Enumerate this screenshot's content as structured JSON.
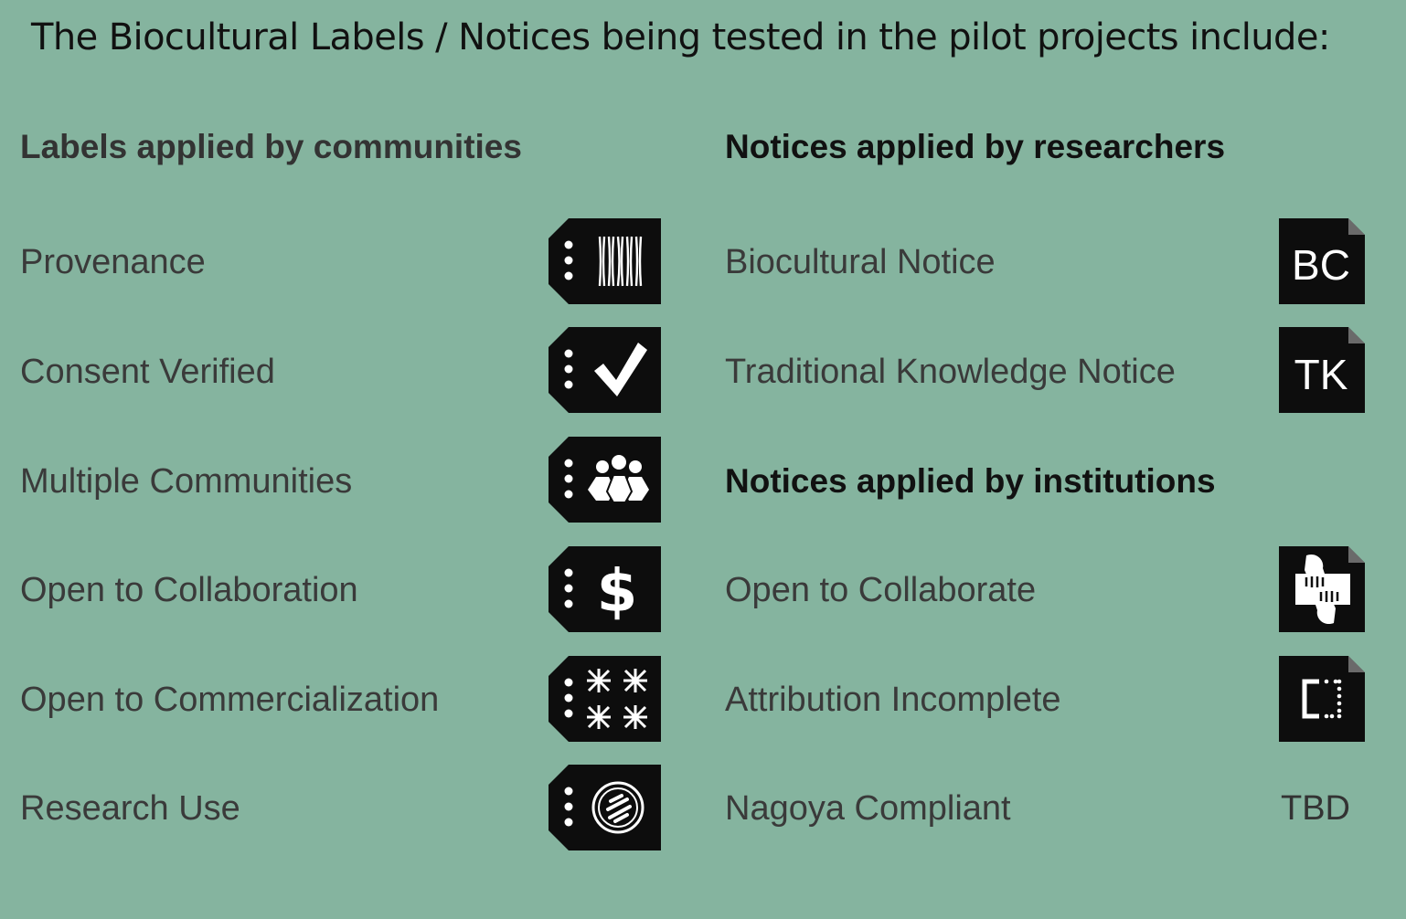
{
  "title": "The Biocultural Labels / Notices being tested in the pilot projects include:",
  "left_column": {
    "heading": "Labels applied by communities",
    "items": [
      {
        "label": "Provenance",
        "icon": "provenance-icon"
      },
      {
        "label": "Consent Verified",
        "icon": "checkmark-icon"
      },
      {
        "label": "Multiple Communities",
        "icon": "people-group-icon"
      },
      {
        "label": "Open to Collaboration",
        "icon": "dollar-icon"
      },
      {
        "label": "Open to Commercialization",
        "icon": "pattern-icon"
      },
      {
        "label": "Research Use",
        "icon": "circle-emblem-icon"
      }
    ]
  },
  "right_column": {
    "heading": "Notices applied by researchers",
    "researcher_items": [
      {
        "label": "Biocultural Notice",
        "badge": "BC"
      },
      {
        "label": "Traditional Knowledge Notice",
        "badge": "TK"
      }
    ],
    "institutions_heading": "Notices applied by institutions",
    "institution_items": [
      {
        "label": "Open to Collaborate",
        "icon": "hands-icon"
      },
      {
        "label": "Attribution Incomplete",
        "icon": "dotted-bracket-icon"
      },
      {
        "label": "Nagoya Compliant",
        "value": "TBD"
      }
    ]
  },
  "colors": {
    "background": "#85b49f",
    "icon_bg": "#0d0d0d",
    "icon_fg": "#ffffff"
  }
}
